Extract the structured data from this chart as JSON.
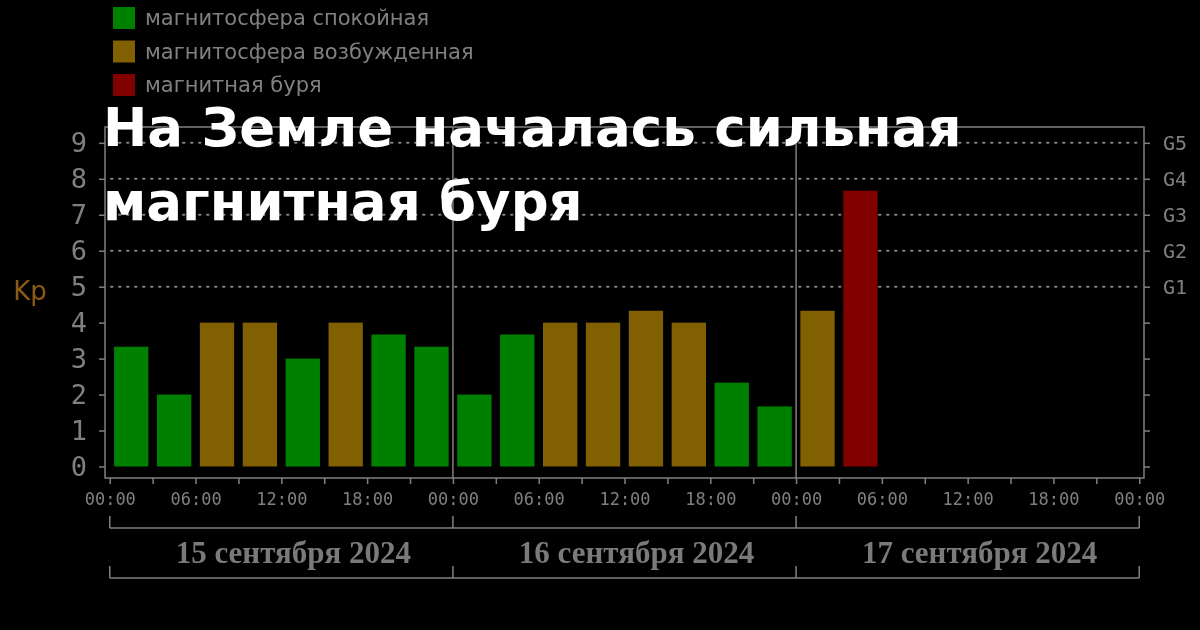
{
  "chart_data": {
    "type": "bar",
    "title": "На Земле началась сильная магнитная буря",
    "ylabel": "Kp",
    "legend": "top left",
    "x": [
      "2024-09-15T01:30",
      "2024-09-15T04:30",
      "2024-09-15T07:30",
      "2024-09-15T10:30",
      "2024-09-15T13:30",
      "2024-09-15T16:30",
      "2024-09-15T19:30",
      "2024-09-15T22:30",
      "2024-09-16T01:30",
      "2024-09-16T04:30",
      "2024-09-16T07:30",
      "2024-09-16T10:30",
      "2024-09-16T13:30",
      "2024-09-16T16:30",
      "2024-09-16T19:30",
      "2024-09-16T22:30",
      "2024-09-17T01:30",
      "2024-09-17T04:30"
    ],
    "series": [
      {
        "name": "магнитосфера спокойная",
        "color": "#008000",
        "values": [
          3.33,
          2,
          null,
          null,
          3,
          null,
          3.67,
          3.33,
          2,
          3.67,
          null,
          null,
          null,
          null,
          2.33,
          1.67,
          null,
          null
        ]
      },
      {
        "name": "магнитосфера возбужденная",
        "color": "#806000",
        "values": [
          null,
          null,
          4,
          4,
          null,
          4,
          null,
          null,
          null,
          null,
          4,
          4,
          4.33,
          4,
          null,
          null,
          4.33,
          null
        ]
      },
      {
        "name": "магнитная буря",
        "color": "#800000",
        "values": [
          null,
          null,
          null,
          null,
          null,
          null,
          null,
          null,
          null,
          null,
          null,
          null,
          null,
          null,
          null,
          null,
          null,
          7.67
        ]
      }
    ],
    "xlim": [
      "2024-09-14T23:40",
      "2024-09-18T00:20"
    ],
    "xticks": [
      {
        "value": "2024-09-15T00:00",
        "label": "00:00"
      },
      {
        "value": "2024-09-15T03:00",
        "label": null
      },
      {
        "value": "2024-09-15T06:00",
        "label": "06:00"
      },
      {
        "value": "2024-09-15T09:00",
        "label": null
      },
      {
        "value": "2024-09-15T12:00",
        "label": "12:00"
      },
      {
        "value": "2024-09-15T15:00",
        "label": null
      },
      {
        "value": "2024-09-15T18:00",
        "label": "18:00"
      },
      {
        "value": "2024-09-15T21:00",
        "label": null
      },
      {
        "value": "2024-09-16T00:00",
        "label": "00:00"
      },
      {
        "value": "2024-09-16T03:00",
        "label": null
      },
      {
        "value": "2024-09-16T06:00",
        "label": "06:00"
      },
      {
        "value": "2024-09-16T09:00",
        "label": null
      },
      {
        "value": "2024-09-16T12:00",
        "label": "12:00"
      },
      {
        "value": "2024-09-16T15:00",
        "label": null
      },
      {
        "value": "2024-09-16T18:00",
        "label": "18:00"
      },
      {
        "value": "2024-09-16T21:00",
        "label": null
      },
      {
        "value": "2024-09-17T00:00",
        "label": "00:00"
      },
      {
        "value": "2024-09-17T03:00",
        "label": null
      },
      {
        "value": "2024-09-17T06:00",
        "label": "06:00"
      },
      {
        "value": "2024-09-17T09:00",
        "label": null
      },
      {
        "value": "2024-09-17T12:00",
        "label": "12:00"
      },
      {
        "value": "2024-09-17T15:00",
        "label": null
      },
      {
        "value": "2024-09-17T18:00",
        "label": "18:00"
      },
      {
        "value": "2024-09-17T21:00",
        "label": null
      },
      {
        "value": "2024-09-18T00:00",
        "label": "00:00"
      }
    ],
    "ylim": [
      -0.32,
      9.44
    ],
    "yticks": [
      0,
      1,
      2,
      3,
      4,
      5,
      6,
      7,
      8,
      9
    ],
    "ref_lines": [
      {
        "axis": "x",
        "value": "2024-09-16T00:00",
        "color": "#808080"
      },
      {
        "axis": "x",
        "value": "2024-09-17T00:00",
        "color": "#808080"
      },
      {
        "axis": "y",
        "value": 5,
        "label": "G1",
        "color": "#808080",
        "line_style": "dotted"
      },
      {
        "axis": "y",
        "value": 6,
        "label": "G2",
        "color": "#808080",
        "line_style": "dotted"
      },
      {
        "axis": "y",
        "value": 7,
        "label": "G3",
        "color": "#808080",
        "line_style": "dotted"
      },
      {
        "axis": "y",
        "value": 8,
        "label": "G4",
        "color": "#808080",
        "line_style": "dotted"
      },
      {
        "axis": "y",
        "value": 9,
        "label": "G5",
        "color": "#808080",
        "line_style": "dotted"
      }
    ],
    "annotations": [
      "15 сентября 2024",
      "16 сентября 2024",
      "17 сентября 2024"
    ]
  }
}
